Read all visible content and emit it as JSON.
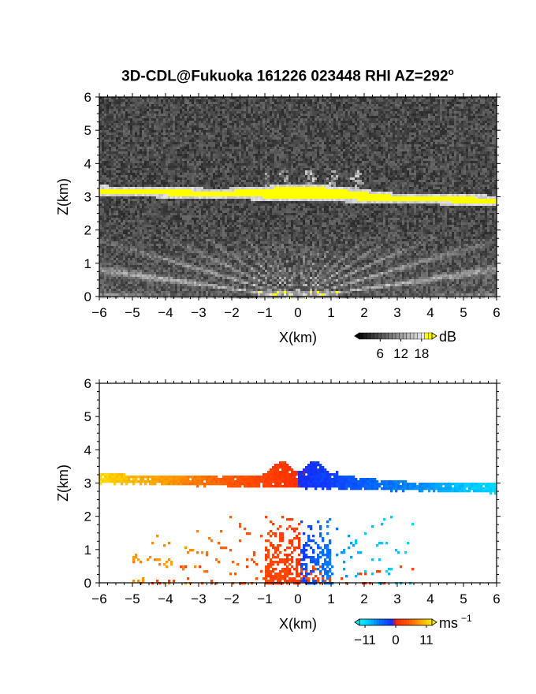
{
  "figure": {
    "title": "3D-CDL@Fukuoka 161226 023448 RHI AZ=292",
    "title_superscript": "o"
  },
  "chart_data": [
    {
      "type": "heatmap",
      "quantity": "reflectivity",
      "xlabel": "X(km)",
      "ylabel": "Z(km)",
      "xlim": [
        -6,
        6
      ],
      "ylim": [
        0,
        6
      ],
      "xticks": [
        "−6",
        "−5",
        "−4",
        "−3",
        "−2",
        "−1",
        "0",
        "1",
        "2",
        "3",
        "4",
        "5",
        "6"
      ],
      "yticks": [
        "0",
        "1",
        "2",
        "3",
        "4",
        "5",
        "6"
      ],
      "colorbar": {
        "unit": "dB",
        "ticks": [
          "6",
          "12",
          "18"
        ],
        "range": [
          0,
          21
        ]
      },
      "features": [
        {
          "name": "cloud-layer",
          "x_range": [
            -6,
            6
          ],
          "z_base_left": 3.1,
          "z_base_right": 2.8,
          "value": 21
        },
        {
          "name": "upper-echo",
          "x_range": [
            -1,
            2
          ],
          "z_range": [
            3.3,
            3.8
          ],
          "value": 10
        },
        {
          "name": "ground-clutter-fan",
          "x_range": [
            -5.5,
            5.5
          ],
          "z_range": [
            0,
            2.0
          ],
          "value": 9
        }
      ]
    },
    {
      "type": "heatmap",
      "quantity": "doppler-velocity",
      "xlabel": "X(km)",
      "ylabel": "Z(km)",
      "xlim": [
        -6,
        6
      ],
      "ylim": [
        0,
        6
      ],
      "xticks": [
        "−6",
        "−5",
        "−4",
        "−3",
        "−2",
        "−1",
        "0",
        "1",
        "2",
        "3",
        "4",
        "5",
        "6"
      ],
      "yticks": [
        "0",
        "1",
        "2",
        "3",
        "4",
        "5",
        "6"
      ],
      "colorbar": {
        "unit": "ms",
        "unit_exponent": "−1",
        "ticks": [
          "−11",
          "0",
          "11"
        ],
        "range": [
          -13,
          13
        ]
      },
      "features": [
        {
          "name": "cloud-layer",
          "x_range": [
            -6,
            6
          ],
          "velocity_left": 12,
          "velocity_right": -11
        },
        {
          "name": "lower-scatter",
          "x_range": [
            -5,
            3.5
          ],
          "z_range": [
            0,
            2.0
          ],
          "velocity_left": 8,
          "velocity_right": -10
        }
      ]
    }
  ],
  "colors": {
    "reflectivity_high": "#ffff00",
    "velocity_positive": "#ff3a00",
    "velocity_negative": "#1240ff",
    "velocity_cyan": "#00d7ff"
  }
}
